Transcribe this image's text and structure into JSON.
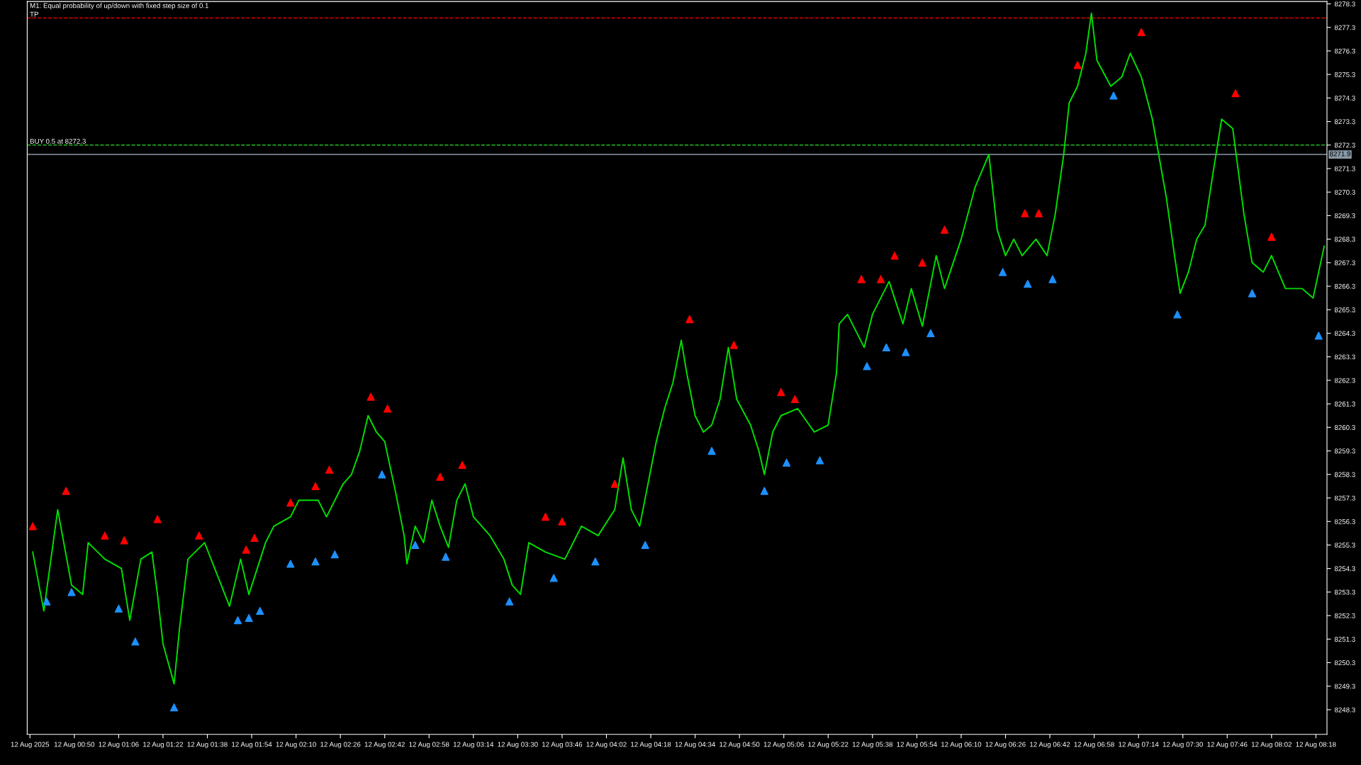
{
  "chart_data": {
    "type": "line",
    "title": "M1: Equal probability of up/down with fixed step size of 0.1",
    "xlim": [
      "2025-08-12T00:33",
      "2025-08-12T08:22"
    ],
    "ylim": [
      8247.25,
      8278.4
    ],
    "xticks": [
      {
        "value": "2025-08-12T00:34",
        "label": "12 Aug 2025"
      },
      {
        "value": "2025-08-12T00:50",
        "label": "12 Aug 00:50"
      },
      {
        "value": "2025-08-12T01:06",
        "label": "12 Aug 01:06"
      },
      {
        "value": "2025-08-12T01:22",
        "label": "12 Aug 01:22"
      },
      {
        "value": "2025-08-12T01:38",
        "label": "12 Aug 01:38"
      },
      {
        "value": "2025-08-12T01:54",
        "label": "12 Aug 01:54"
      },
      {
        "value": "2025-08-12T02:10",
        "label": "12 Aug 02:10"
      },
      {
        "value": "2025-08-12T02:26",
        "label": "12 Aug 02:26"
      },
      {
        "value": "2025-08-12T02:42",
        "label": "12 Aug 02:42"
      },
      {
        "value": "2025-08-12T02:58",
        "label": "12 Aug 02:58"
      },
      {
        "value": "2025-08-12T03:14",
        "label": "12 Aug 03:14"
      },
      {
        "value": "2025-08-12T03:30",
        "label": "12 Aug 03:30"
      },
      {
        "value": "2025-08-12T03:46",
        "label": "12 Aug 03:46"
      },
      {
        "value": "2025-08-12T04:02",
        "label": "12 Aug 04:02"
      },
      {
        "value": "2025-08-12T04:18",
        "label": "12 Aug 04:18"
      },
      {
        "value": "2025-08-12T04:34",
        "label": "12 Aug 04:34"
      },
      {
        "value": "2025-08-12T04:50",
        "label": "12 Aug 04:50"
      },
      {
        "value": "2025-08-12T05:06",
        "label": "12 Aug 05:06"
      },
      {
        "value": "2025-08-12T05:22",
        "label": "12 Aug 05:22"
      },
      {
        "value": "2025-08-12T05:38",
        "label": "12 Aug 05:38"
      },
      {
        "value": "2025-08-12T05:54",
        "label": "12 Aug 05:54"
      },
      {
        "value": "2025-08-12T06:10",
        "label": "12 Aug 06:10"
      },
      {
        "value": "2025-08-12T06:26",
        "label": "12 Aug 06:26"
      },
      {
        "value": "2025-08-12T06:42",
        "label": "12 Aug 06:42"
      },
      {
        "value": "2025-08-12T06:58",
        "label": "12 Aug 06:58"
      },
      {
        "value": "2025-08-12T07:14",
        "label": "12 Aug 07:14"
      },
      {
        "value": "2025-08-12T07:30",
        "label": "12 Aug 07:30"
      },
      {
        "value": "2025-08-12T07:46",
        "label": "12 Aug 07:46"
      },
      {
        "value": "2025-08-12T08:02",
        "label": "12 Aug 08:02"
      },
      {
        "value": "2025-08-12T08:18",
        "label": "12 Aug 08:18"
      }
    ],
    "yticks": [
      8248.3,
      8249.3,
      8250.3,
      8251.3,
      8252.3,
      8253.3,
      8254.3,
      8255.3,
      8256.3,
      8257.3,
      8258.3,
      8259.3,
      8260.3,
      8261.3,
      8262.3,
      8263.3,
      8264.3,
      8265.3,
      8266.3,
      8267.3,
      8268.3,
      8269.3,
      8270.3,
      8271.3,
      8272.3,
      8273.3,
      8274.3,
      8275.3,
      8276.3,
      8277.3,
      8278.3
    ],
    "grid": false,
    "legend": false,
    "ref_lines": [
      {
        "axis": "y",
        "value": 8277.7,
        "label": "TP",
        "color": "#ff0000",
        "line_style": "dashed"
      },
      {
        "axis": "y",
        "value": 8272.3,
        "label": "BUY 0.5 at 8272.3",
        "color": "#22bb22",
        "line_style": "dashed"
      },
      {
        "axis": "y",
        "value": 8271.9,
        "label": "8271.9",
        "color": "#8a9aa8",
        "line_style": "solid"
      }
    ],
    "series": [
      {
        "color": "#00e000",
        "marker": "none",
        "line_style": "solid",
        "x": [
          "2025-08-12T00:35",
          "2025-08-12T00:39",
          "2025-08-12T00:44",
          "2025-08-12T00:49",
          "2025-08-12T00:53",
          "2025-08-12T00:55",
          "2025-08-12T01:01",
          "2025-08-12T01:07",
          "2025-08-12T01:10",
          "2025-08-12T01:14",
          "2025-08-12T01:18",
          "2025-08-12T01:20",
          "2025-08-12T01:22",
          "2025-08-12T01:26",
          "2025-08-12T01:28",
          "2025-08-12T01:31",
          "2025-08-12T01:37",
          "2025-08-12T01:43",
          "2025-08-12T01:46",
          "2025-08-12T01:50",
          "2025-08-12T01:53",
          "2025-08-12T01:59",
          "2025-08-12T02:02",
          "2025-08-12T02:08",
          "2025-08-12T02:11",
          "2025-08-12T02:18",
          "2025-08-12T02:21",
          "2025-08-12T02:27",
          "2025-08-12T02:30",
          "2025-08-12T02:33",
          "2025-08-12T02:36",
          "2025-08-12T02:39",
          "2025-08-12T02:42",
          "2025-08-12T02:46",
          "2025-08-12T02:49",
          "2025-08-12T02:50",
          "2025-08-12T02:53",
          "2025-08-12T02:56",
          "2025-08-12T02:59",
          "2025-08-12T03:02",
          "2025-08-12T03:05",
          "2025-08-12T03:08",
          "2025-08-12T03:11",
          "2025-08-12T03:14",
          "2025-08-12T03:20",
          "2025-08-12T03:25",
          "2025-08-12T03:28",
          "2025-08-12T03:31",
          "2025-08-12T03:34",
          "2025-08-12T03:40",
          "2025-08-12T03:47",
          "2025-08-12T03:53",
          "2025-08-12T03:59",
          "2025-08-12T04:05",
          "2025-08-12T04:08",
          "2025-08-12T04:11",
          "2025-08-12T04:14",
          "2025-08-12T04:17",
          "2025-08-12T04:20",
          "2025-08-12T04:23",
          "2025-08-12T04:26",
          "2025-08-12T04:29",
          "2025-08-12T04:31",
          "2025-08-12T04:34",
          "2025-08-12T04:37",
          "2025-08-12T04:40",
          "2025-08-12T04:43",
          "2025-08-12T04:46",
          "2025-08-12T04:49",
          "2025-08-12T04:54",
          "2025-08-12T04:57",
          "2025-08-12T04:59",
          "2025-08-12T05:02",
          "2025-08-12T05:05",
          "2025-08-12T05:11",
          "2025-08-12T05:17",
          "2025-08-12T05:22",
          "2025-08-12T05:25",
          "2025-08-12T05:26",
          "2025-08-12T05:29",
          "2025-08-12T05:35",
          "2025-08-12T05:38",
          "2025-08-12T05:44",
          "2025-08-12T05:49",
          "2025-08-12T05:52",
          "2025-08-12T05:56",
          "2025-08-12T06:01",
          "2025-08-12T06:04",
          "2025-08-12T06:10",
          "2025-08-12T06:15",
          "2025-08-12T06:20",
          "2025-08-12T06:23",
          "2025-08-12T06:26",
          "2025-08-12T06:29",
          "2025-08-12T06:32",
          "2025-08-12T06:37",
          "2025-08-12T06:41",
          "2025-08-12T06:44",
          "2025-08-12T06:47",
          "2025-08-12T06:49",
          "2025-08-12T06:52",
          "2025-08-12T06:55",
          "2025-08-12T06:57",
          "2025-08-12T06:59",
          "2025-08-12T07:04",
          "2025-08-12T07:08",
          "2025-08-12T07:11",
          "2025-08-12T07:15",
          "2025-08-12T07:19",
          "2025-08-12T07:24",
          "2025-08-12T07:27",
          "2025-08-12T07:29",
          "2025-08-12T07:32",
          "2025-08-12T07:35",
          "2025-08-12T07:38",
          "2025-08-12T07:41",
          "2025-08-12T07:44",
          "2025-08-12T07:48",
          "2025-08-12T07:52",
          "2025-08-12T07:55",
          "2025-08-12T07:59",
          "2025-08-12T08:02",
          "2025-08-12T08:07",
          "2025-08-12T08:13",
          "2025-08-12T08:17",
          "2025-08-12T08:21"
        ],
        "values": [
          8255.0,
          8252.5,
          8256.8,
          8253.6,
          8253.2,
          8255.4,
          8254.7,
          8254.3,
          8252.1,
          8254.7,
          8255.0,
          8253.2,
          8251.1,
          8249.4,
          8251.8,
          8254.7,
          8255.4,
          8253.6,
          8252.7,
          8254.7,
          8253.2,
          8255.4,
          8256.1,
          8256.5,
          8257.2,
          8257.2,
          8256.5,
          8257.9,
          8258.3,
          8259.3,
          8260.8,
          8260.1,
          8259.7,
          8257.5,
          8255.7,
          8254.5,
          8256.1,
          8255.4,
          8257.2,
          8256.1,
          8255.2,
          8257.2,
          8257.9,
          8256.5,
          8255.7,
          8254.7,
          8253.6,
          8253.2,
          8255.4,
          8255.0,
          8254.7,
          8256.1,
          8255.7,
          8256.8,
          8259.0,
          8256.8,
          8256.1,
          8257.9,
          8259.7,
          8261.1,
          8262.2,
          8264.0,
          8262.6,
          8260.8,
          8260.1,
          8260.4,
          8261.5,
          8263.7,
          8261.5,
          8260.4,
          8259.3,
          8258.3,
          8260.1,
          8260.8,
          8261.1,
          8260.1,
          8260.4,
          8262.6,
          8264.7,
          8265.1,
          8263.7,
          8265.1,
          8266.5,
          8264.7,
          8266.2,
          8264.6,
          8267.6,
          8266.2,
          8268.3,
          8270.5,
          8271.9,
          8268.7,
          8267.6,
          8268.3,
          8267.6,
          8268.3,
          8267.6,
          8269.4,
          8271.9,
          8274.1,
          8274.8,
          8276.2,
          8277.9,
          8275.9,
          8274.8,
          8275.2,
          8276.2,
          8275.2,
          8273.4,
          8270.1,
          8267.6,
          8266.0,
          8266.9,
          8268.3,
          8268.9,
          8271.2,
          8273.4,
          8273.0,
          8269.4,
          8267.3,
          8266.9,
          8267.6,
          8266.2,
          8266.2,
          8265.8,
          8268.0
        ]
      },
      {
        "type": "scatter",
        "color": "#ff0000",
        "marker": "triangle",
        "x": [
          "2025-08-12T00:35",
          "2025-08-12T00:47",
          "2025-08-12T01:01",
          "2025-08-12T01:08",
          "2025-08-12T01:20",
          "2025-08-12T01:35",
          "2025-08-12T01:52",
          "2025-08-12T01:55",
          "2025-08-12T02:08",
          "2025-08-12T02:17",
          "2025-08-12T02:22",
          "2025-08-12T02:37",
          "2025-08-12T02:43",
          "2025-08-12T03:02",
          "2025-08-12T03:10",
          "2025-08-12T03:40",
          "2025-08-12T03:46",
          "2025-08-12T04:05",
          "2025-08-12T04:32",
          "2025-08-12T04:48",
          "2025-08-12T05:05",
          "2025-08-12T05:10",
          "2025-08-12T05:34",
          "2025-08-12T05:41",
          "2025-08-12T05:46",
          "2025-08-12T05:56",
          "2025-08-12T06:04",
          "2025-08-12T06:33",
          "2025-08-12T06:38",
          "2025-08-12T06:52",
          "2025-08-12T07:15",
          "2025-08-12T07:49",
          "2025-08-12T08:02"
        ],
        "values": [
          8256.1,
          8257.6,
          8255.7,
          8255.5,
          8256.4,
          8255.7,
          8255.1,
          8255.6,
          8257.1,
          8257.8,
          8258.5,
          8261.6,
          8261.1,
          8258.2,
          8258.7,
          8256.5,
          8256.3,
          8257.9,
          8264.9,
          8263.8,
          8261.8,
          8261.5,
          8266.6,
          8266.6,
          8267.6,
          8267.3,
          8268.7,
          8269.4,
          8269.4,
          8275.7,
          8277.1,
          8274.5,
          8268.4
        ]
      },
      {
        "type": "scatter",
        "color": "#1e90ff",
        "marker": "triangle",
        "x": [
          "2025-08-12T00:40",
          "2025-08-12T00:49",
          "2025-08-12T01:06",
          "2025-08-12T01:12",
          "2025-08-12T01:26",
          "2025-08-12T01:49",
          "2025-08-12T01:53",
          "2025-08-12T01:57",
          "2025-08-12T02:08",
          "2025-08-12T02:17",
          "2025-08-12T02:24",
          "2025-08-12T02:41",
          "2025-08-12T02:53",
          "2025-08-12T03:04",
          "2025-08-12T03:27",
          "2025-08-12T03:43",
          "2025-08-12T03:58",
          "2025-08-12T04:16",
          "2025-08-12T04:40",
          "2025-08-12T04:59",
          "2025-08-12T05:07",
          "2025-08-12T05:19",
          "2025-08-12T05:36",
          "2025-08-12T05:43",
          "2025-08-12T05:50",
          "2025-08-12T05:59",
          "2025-08-12T06:25",
          "2025-08-12T06:34",
          "2025-08-12T06:43",
          "2025-08-12T07:05",
          "2025-08-12T07:28",
          "2025-08-12T07:55",
          "2025-08-12T08:19"
        ],
        "values": [
          8252.9,
          8253.3,
          8252.6,
          8251.2,
          8248.4,
          8252.1,
          8252.2,
          8252.5,
          8254.5,
          8254.6,
          8254.9,
          8258.3,
          8255.3,
          8254.8,
          8252.9,
          8253.9,
          8254.6,
          8255.3,
          8259.3,
          8257.6,
          8258.8,
          8258.9,
          8262.9,
          8263.7,
          8263.5,
          8264.3,
          8266.9,
          8266.4,
          8266.6,
          8274.4,
          8265.1,
          8266.0,
          8264.2
        ]
      }
    ]
  }
}
